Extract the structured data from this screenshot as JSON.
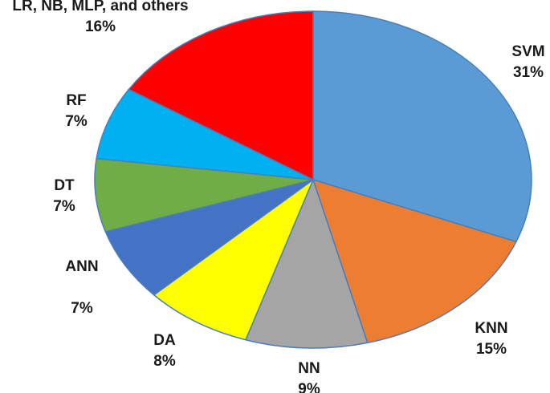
{
  "chart_data": {
    "type": "pie",
    "title": "",
    "slices": [
      {
        "name": "SVM",
        "value": 31,
        "label": "31%",
        "color": "#5B9BD5"
      },
      {
        "name": "KNN",
        "value": 15,
        "label": "15%",
        "color": "#ED7D31"
      },
      {
        "name": "NN",
        "value": 9,
        "label": "9%",
        "color": "#A5A5A5"
      },
      {
        "name": "DA",
        "value": 8,
        "label": "8%",
        "color": "#FFFF00"
      },
      {
        "name": "ANN",
        "value": 7,
        "label": "7%",
        "color": "#4472C4"
      },
      {
        "name": "DT",
        "value": 7,
        "label": "7%",
        "color": "#70AD47"
      },
      {
        "name": "RF",
        "value": 7,
        "label": "7%",
        "color": "#00B0F0"
      },
      {
        "name": "LR, NB, MLP, and others",
        "value": 16,
        "label": "16%",
        "color": "#FF0000"
      }
    ],
    "start_angle": "12 o'clock",
    "direction": "clockwise",
    "legend": "none",
    "edge_color": "#4A7EBB"
  }
}
